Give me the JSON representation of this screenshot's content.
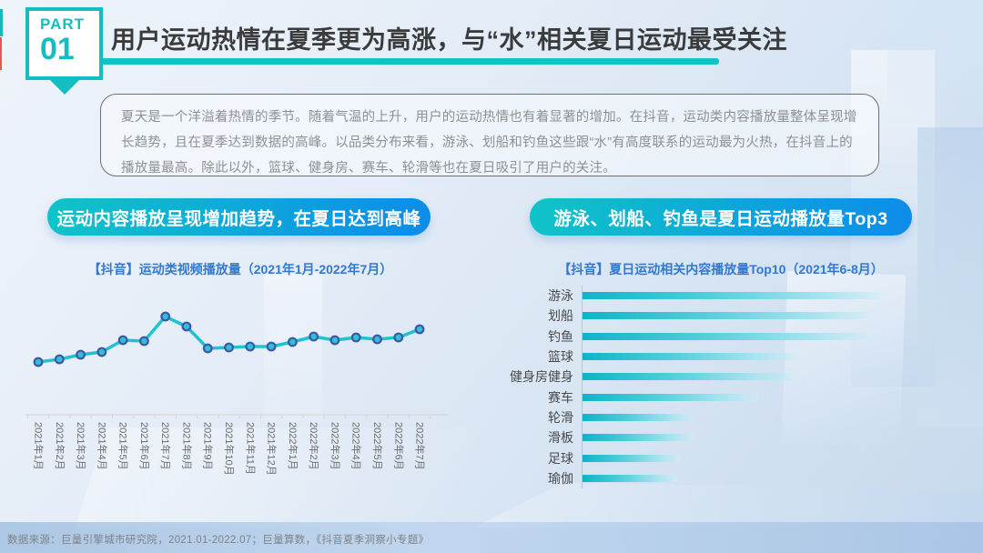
{
  "slide": {
    "part_label": "PART",
    "part_number": "01",
    "title": "用户运动热情在夏季更为高涨，与“水”相关夏日运动最受关注",
    "intro": "夏天是一个洋溢着热情的季节。随着气温的上升，用户的运动热情也有着显著的增加。在抖音，运动类内容播放量整体呈现增长趋势，且在夏季达到数据的高峰。以品类分布来看，游泳、划船和钓鱼这些跟“水”有高度联系的运动最为火热，在抖音上的播放量最高。除此以外，篮球、健身房、赛车、轮滑等也在夏日吸引了用户的关注。",
    "source": "数据来源：巨量引擎城市研究院，2021.01-2022.07；巨量算数，《抖音夏季洞察小专题》"
  },
  "left_panel": {
    "headline": "运动内容播放呈现增加趋势，在夏日达到高峰",
    "chart_title": "【抖音】运动类视频播放量（2021年1月-2022年7月）"
  },
  "right_panel": {
    "headline": "游泳、划船、钓鱼是夏日运动播放量Top3",
    "chart_title": "【抖音】夏日运动相关内容播放量Top10（2021年6-8月）"
  },
  "colors": {
    "accent_teal": "#12c2c5",
    "pill_gradient_start": "#0fc4c9",
    "pill_gradient_end": "#0d8ce9",
    "line_stroke": "#1dc3cf",
    "marker_ring": "#4056a8",
    "marker_fill": "#2ec1d4",
    "bar_gradient_start": "#0db4c8",
    "bar_gradient_end": "#d6f0f8",
    "chart_title_blue": "#3478cc",
    "badge_red_mark": "#e05a4e"
  },
  "chart_data": [
    {
      "type": "line",
      "title": "【抖音】运动类视频播放量（2021年1月-2022年7月）",
      "x": [
        "2021年1月",
        "2021年2月",
        "2021年3月",
        "2021年4月",
        "2021年5月",
        "2021年6月",
        "2021年7月",
        "2021年8月",
        "2021年9月",
        "2021年10月",
        "2021年11月",
        "2021年12月",
        "2022年1月",
        "2022年2月",
        "2022年3月",
        "2022年4月",
        "2022年5月",
        "2022年6月",
        "2022年7月"
      ],
      "values": [
        58,
        61,
        66,
        69,
        82,
        81,
        108,
        97,
        73,
        74,
        75,
        75,
        80,
        86,
        82,
        85,
        83,
        85,
        94
      ],
      "value_note": "relative playback volume, no y-axis shown; peak at 2021年7月",
      "ylim": [
        0,
        130
      ],
      "grid": false,
      "legend": "none"
    },
    {
      "type": "bar",
      "orientation": "horizontal",
      "title": "【抖音】夏日运动相关内容播放量Top10（2021年6-8月）",
      "categories": [
        "游泳",
        "划船",
        "钓鱼",
        "篮球",
        "健身房健身",
        "赛车",
        "轮滑",
        "滑板",
        "足球",
        "瑜伽"
      ],
      "values": [
        100,
        96,
        96,
        72,
        71,
        58,
        37,
        37,
        32,
        31
      ],
      "value_note": "relative playback volume, normalized to 游泳 = 100; no value axis shown",
      "grid": false,
      "legend": "none"
    }
  ]
}
